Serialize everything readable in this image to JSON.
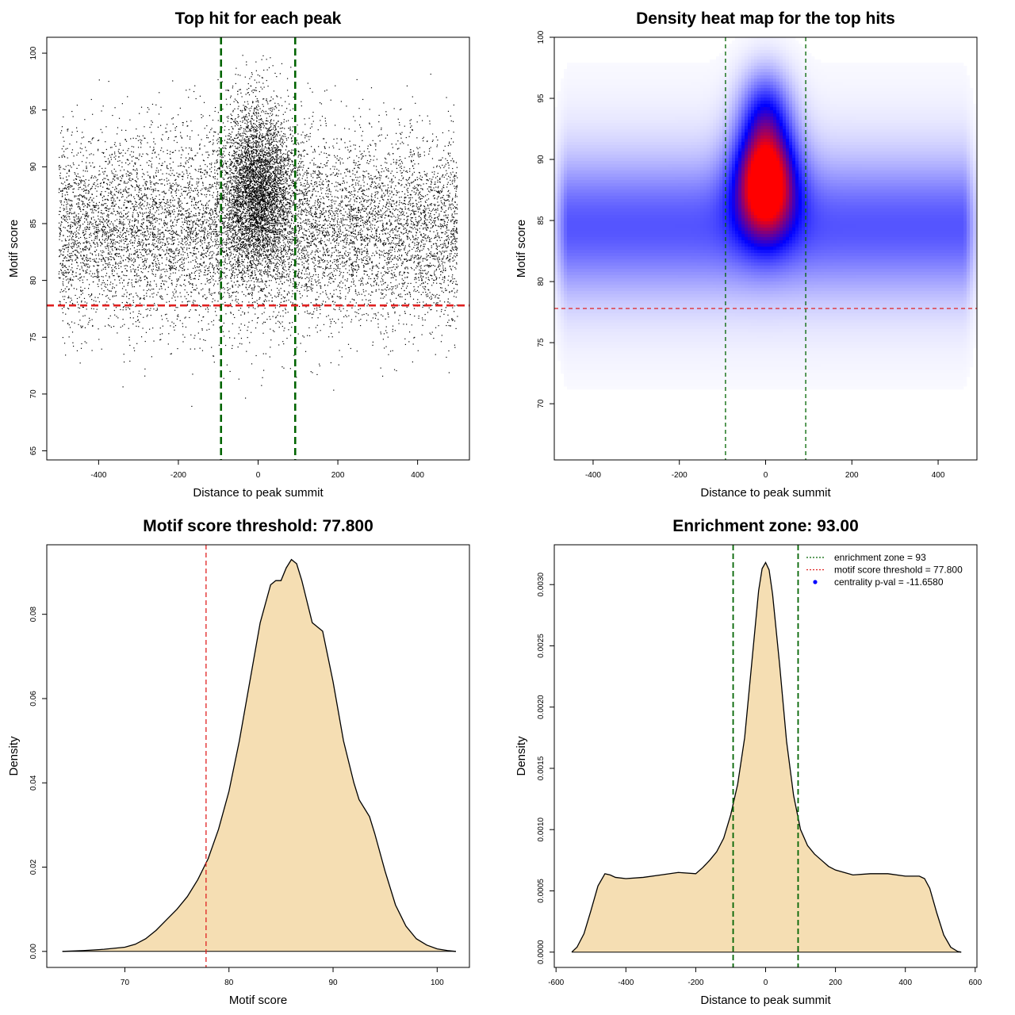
{
  "colors": {
    "threshold_line": "#e02020",
    "zone_line": "#006400",
    "density_fill": "#f5deb3",
    "points": "#000000",
    "heat_low": "#ffffff",
    "heat_mid": "#0000ff",
    "heat_high": "#ff0000",
    "legend_point": "#0000ff"
  },
  "chart_data": [
    {
      "id": "scatter",
      "type": "scatter",
      "title": "Top hit for each peak",
      "xlabel": "Distance to peak summit",
      "ylabel": "Motif score",
      "xlim": [
        -530,
        530
      ],
      "ylim": [
        64.2,
        101.4
      ],
      "xticks": [
        -400,
        -200,
        0,
        200,
        400
      ],
      "yticks": [
        65,
        70,
        75,
        80,
        85,
        90,
        95,
        100
      ],
      "hlines": [
        77.8
      ],
      "vlines": [
        -93,
        93
      ],
      "points_description_n": 14000,
      "distribution": {
        "x_range": [
          -500,
          500
        ],
        "background_score_mean": 84.5,
        "background_score_sd": 4.2,
        "central_fraction": 0.3,
        "central_x_sd": 45,
        "central_score_mean": 88,
        "central_score_sd": 3.8
      }
    },
    {
      "id": "heatmap",
      "type": "heatmap",
      "title": "Density heat map for the top hits",
      "xlabel": "Distance to peak summit",
      "ylabel": "Motif score",
      "xlim": [
        -490,
        490
      ],
      "ylim": [
        65.4,
        100
      ],
      "xticks": [
        -400,
        -200,
        0,
        200,
        400
      ],
      "yticks": [
        70,
        75,
        80,
        85,
        90,
        95,
        100
      ],
      "hlines": [
        77.8
      ],
      "vlines": [
        -93,
        93
      ],
      "color_scale": [
        "white",
        "blue",
        "red"
      ],
      "peak_location": {
        "x": 0,
        "y": 88.5
      }
    },
    {
      "id": "score-density",
      "type": "area",
      "title": "Motif score threshold: 77.800",
      "xlabel": "Motif score",
      "ylabel": "Density",
      "xlim": [
        62.5,
        103.1
      ],
      "ylim": [
        -0.0038,
        0.0965
      ],
      "xticks": [
        70,
        80,
        90,
        100
      ],
      "yticks": [
        0.0,
        0.02,
        0.04,
        0.06,
        0.08
      ],
      "ytick_labels": [
        "0.00",
        "0.02",
        "0.04",
        "0.06",
        "0.08"
      ],
      "vlines": [
        77.8
      ],
      "x": [
        64,
        66,
        68,
        70,
        71,
        72,
        73,
        74,
        75,
        76,
        77,
        78,
        79,
        80,
        81,
        82,
        83,
        84,
        84.5,
        85,
        85.5,
        86,
        86.5,
        87,
        87.5,
        88,
        88.5,
        89,
        90,
        91,
        92,
        92.5,
        93,
        93.5,
        94,
        95,
        96,
        97,
        98,
        99,
        100,
        101,
        101.8
      ],
      "y": [
        0,
        0.0002,
        0.0005,
        0.001,
        0.0017,
        0.003,
        0.005,
        0.0075,
        0.01,
        0.013,
        0.017,
        0.022,
        0.029,
        0.038,
        0.05,
        0.064,
        0.078,
        0.087,
        0.088,
        0.088,
        0.091,
        0.093,
        0.092,
        0.088,
        0.083,
        0.078,
        0.077,
        0.076,
        0.064,
        0.05,
        0.04,
        0.036,
        0.034,
        0.032,
        0.028,
        0.019,
        0.011,
        0.006,
        0.003,
        0.0015,
        0.0006,
        0.0002,
        0
      ]
    },
    {
      "id": "distance-density",
      "type": "area",
      "title": "Enrichment zone: 93.00",
      "xlabel": "Distance to peak summit",
      "ylabel": "Density",
      "xlim": [
        -605,
        605
      ],
      "ylim": [
        -0.000125,
        0.003325
      ],
      "xticks": [
        -600,
        -400,
        -200,
        0,
        200,
        400,
        600
      ],
      "yticks": [
        0.0,
        0.0005,
        0.001,
        0.0015,
        0.002,
        0.0025,
        0.003
      ],
      "ytick_labels": [
        "0.0000",
        "0.0005",
        "0.0010",
        "0.0015",
        "0.0020",
        "0.0025",
        "0.0030"
      ],
      "vlines": [
        -93,
        93
      ],
      "x": [
        -555,
        -540,
        -520,
        -500,
        -480,
        -460,
        -445,
        -430,
        -400,
        -350,
        -300,
        -250,
        -200,
        -180,
        -160,
        -140,
        -120,
        -100,
        -80,
        -60,
        -40,
        -20,
        -10,
        0,
        10,
        20,
        40,
        60,
        80,
        100,
        120,
        140,
        160,
        180,
        200,
        250,
        300,
        350,
        400,
        440,
        455,
        470,
        490,
        510,
        530,
        550,
        560
      ],
      "y": [
        0,
        4e-05,
        0.00015,
        0.00034,
        0.00054,
        0.00064,
        0.00063,
        0.00061,
        0.0006,
        0.00061,
        0.00063,
        0.00065,
        0.00064,
        0.00069,
        0.00075,
        0.00082,
        0.00093,
        0.00112,
        0.00137,
        0.00175,
        0.00235,
        0.00295,
        0.00313,
        0.00318,
        0.00312,
        0.00292,
        0.00235,
        0.00172,
        0.00128,
        0.001,
        0.00087,
        0.0008,
        0.00075,
        0.0007,
        0.00067,
        0.00063,
        0.00064,
        0.00064,
        0.00062,
        0.00062,
        0.0006,
        0.00052,
        0.00032,
        0.00014,
        4e-05,
        5e-06,
        0
      ],
      "legend": [
        {
          "label": "enrichment zone = 93",
          "symbol": "dotted-line",
          "color": "#006400"
        },
        {
          "label": "motif score threshold = 77.800",
          "symbol": "dotted-line",
          "color": "#e02020"
        },
        {
          "label": "centrality p-val = -11.6580",
          "symbol": "point",
          "color": "#0000ff"
        }
      ],
      "legend_position": "top-right"
    }
  ]
}
